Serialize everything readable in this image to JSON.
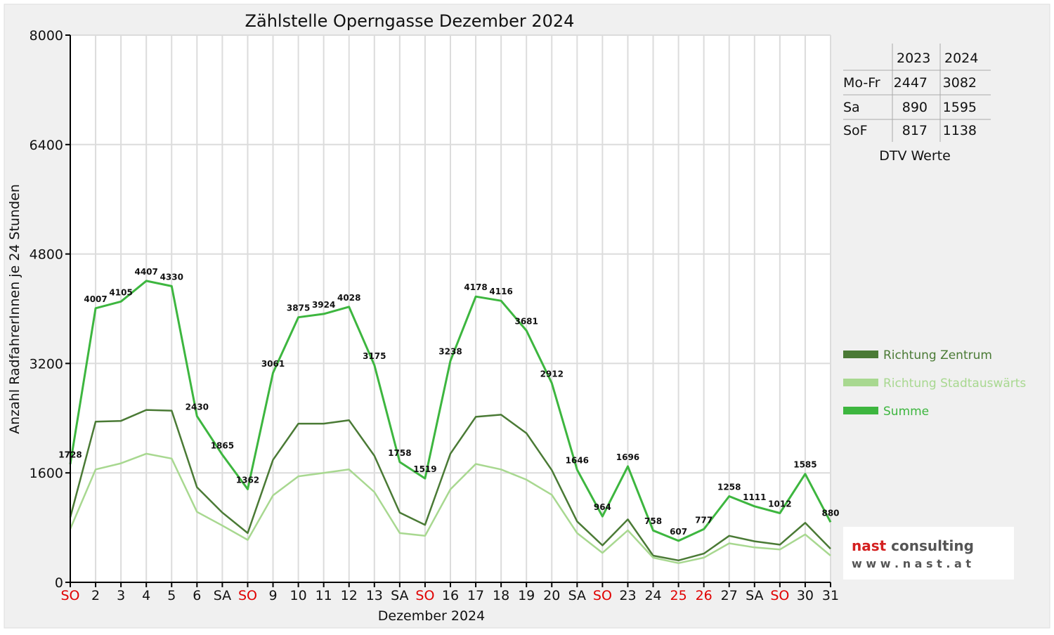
{
  "chart_data": {
    "type": "line",
    "title": "Zählstelle Operngasse Dezember 2024",
    "xlabel": "Dezember 2024",
    "ylabel": "Anzahl RadfahrerInnen je 24 Stunden",
    "ylim": [
      0,
      8000
    ],
    "yticks": [
      "0",
      "1600",
      "3200",
      "4800",
      "6400",
      "8000"
    ],
    "grid": true,
    "legend_position": "right",
    "categories": [
      "SO",
      "2",
      "3",
      "4",
      "5",
      "6",
      "SA",
      "SO",
      "9",
      "10",
      "11",
      "12",
      "13",
      "SA",
      "SO",
      "16",
      "17",
      "18",
      "19",
      "20",
      "SA",
      "SO",
      "23",
      "24",
      "25",
      "26",
      "27",
      "SA",
      "SO",
      "30",
      "31"
    ],
    "red_categories": [
      0,
      7,
      14,
      21,
      24,
      25,
      28
    ],
    "series": [
      {
        "name": "Richtung Zentrum",
        "color": "#4a7a35",
        "values": [
          950,
          2350,
          2360,
          2520,
          2510,
          1390,
          1020,
          720,
          1790,
          2320,
          2320,
          2370,
          1850,
          1020,
          840,
          1880,
          2420,
          2450,
          2180,
          1640,
          890,
          540,
          920,
          390,
          320,
          420,
          680,
          600,
          550,
          870,
          490
        ]
      },
      {
        "name": "Richtung Stadtauswärts",
        "color": "#a8d890",
        "values": [
          780,
          1650,
          1740,
          1880,
          1810,
          1030,
          830,
          620,
          1270,
          1550,
          1600,
          1650,
          1320,
          720,
          680,
          1360,
          1730,
          1650,
          1500,
          1280,
          720,
          430,
          760,
          360,
          280,
          360,
          570,
          510,
          480,
          700,
          390
        ]
      },
      {
        "name": "Summe",
        "color": "#3db63f",
        "values": [
          1728,
          4007,
          4105,
          4407,
          4330,
          2430,
          1865,
          1362,
          3061,
          3875,
          3924,
          4028,
          3175,
          1758,
          1519,
          3238,
          4178,
          4116,
          3681,
          2912,
          1646,
          964,
          1696,
          758,
          607,
          777,
          1258,
          1111,
          1012,
          1585,
          880
        ]
      }
    ]
  },
  "dtv_table": {
    "header": [
      "",
      "2023",
      "2024"
    ],
    "rows": [
      {
        "label": "Mo-Fr",
        "y2023": "2447",
        "y2024": "3082"
      },
      {
        "label": "Sa",
        "y2023": "890",
        "y2024": "1595"
      },
      {
        "label": "SoF",
        "y2023": "817",
        "y2024": "1138"
      }
    ],
    "caption": "DTV Werte"
  },
  "logo": {
    "line1": "nast consulting",
    "line2": "w w w . n a s t . a t"
  }
}
